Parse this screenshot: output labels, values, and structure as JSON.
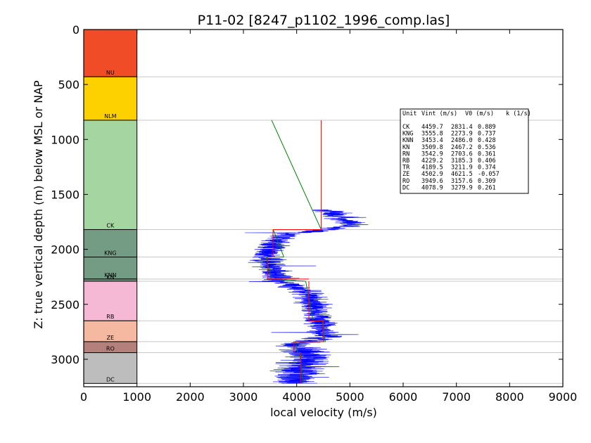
{
  "chart_data": {
    "type": "line",
    "title": "P11-02 [8247_p1102_1996_comp.las]",
    "xlabel": "local velocity (m/s)",
    "ylabel": "Z: true vertical depth (m) below MSL or NAP",
    "xlim": [
      0,
      9000
    ],
    "ylim": [
      3250,
      0
    ],
    "xticks": [
      "0",
      "1000",
      "2000",
      "3000",
      "4000",
      "5000",
      "6000",
      "7000",
      "8000",
      "9000"
    ],
    "yticks": [
      "0",
      "500",
      "1000",
      "1500",
      "2000",
      "2500",
      "3000"
    ],
    "grid": false,
    "units": [
      {
        "name": "NU",
        "top": 0,
        "base": 430,
        "color": "#f04c28"
      },
      {
        "name": "NLM",
        "top": 430,
        "base": 825,
        "color": "#fdd000"
      },
      {
        "name": "CK",
        "top": 825,
        "base": 1820,
        "color": "#a5d5a0"
      },
      {
        "name": "KNG",
        "top": 1820,
        "base": 2070,
        "color": "#749b84"
      },
      {
        "name": "KNN",
        "top": 2070,
        "base": 2270,
        "color": "#749b84"
      },
      {
        "name": "KN",
        "top": 2270,
        "base": 2290,
        "color": "#749b84"
      },
      {
        "name": "RB",
        "top": 2290,
        "base": 2650,
        "color": "#f5b9d5"
      },
      {
        "name": "ZE",
        "top": 2650,
        "base": 2840,
        "color": "#f5b8a0"
      },
      {
        "name": "RO",
        "top": 2840,
        "base": 2940,
        "color": "#b4807c"
      },
      {
        "name": "DC",
        "top": 2940,
        "base": 3220,
        "color": "#bdbdbd"
      }
    ],
    "legend": {
      "position": "top-right",
      "header": [
        "Unit",
        "Vint (m/s)",
        "V0 (m/s)",
        "k (1/s)"
      ],
      "rows": [
        [
          "CK",
          "4459.7",
          "2831.4",
          "0.889"
        ],
        [
          "KNG",
          "3555.8",
          "2273.9",
          "0.737"
        ],
        [
          "KNN",
          "3453.4",
          "2486.0",
          "0.428"
        ],
        [
          "KN",
          "3509.8",
          "2467.2",
          "0.536"
        ],
        [
          "RN",
          "3542.9",
          "2703.6",
          "0.361"
        ],
        [
          "RB",
          "4229.2",
          "3185.3",
          "0.406"
        ],
        [
          "TR",
          "4189.5",
          "3211.9",
          "0.374"
        ],
        [
          "ZE",
          "4502.9",
          "4621.5",
          "-0.057"
        ],
        [
          "RO",
          "3949.6",
          "3157.6",
          "0.309"
        ],
        [
          "DC",
          "4078.9",
          "3279.9",
          "0.261"
        ]
      ]
    },
    "series": [
      {
        "kind": "interval_velocity",
        "color": "#ff0000",
        "segments": [
          {
            "v": 4459.7,
            "top": 825,
            "base": 1820
          },
          {
            "v": 3555.8,
            "top": 1820,
            "base": 2070
          },
          {
            "v": 3453.4,
            "top": 2070,
            "base": 2270
          },
          {
            "v": 4229.2,
            "top": 2290,
            "base": 2650
          },
          {
            "v": 4502.9,
            "top": 2650,
            "base": 2840
          },
          {
            "v": 3949.6,
            "top": 2840,
            "base": 2940
          },
          {
            "v": 4078.9,
            "top": 2940,
            "base": 3220
          }
        ]
      },
      {
        "kind": "linear_trend",
        "color": "#008000",
        "segments": [
          {
            "v_top": 3530,
            "v_base": 4460,
            "top": 825,
            "base": 1820
          },
          {
            "v_top": 3560,
            "v_base": 3760,
            "top": 1820,
            "base": 2070
          },
          {
            "v_top": 3430,
            "v_base": 3520,
            "top": 2070,
            "base": 2270
          },
          {
            "v_top": 4170,
            "v_base": 4310,
            "top": 2290,
            "base": 2650
          },
          {
            "v_top": 4480,
            "v_base": 4540,
            "top": 2650,
            "base": 2840
          },
          {
            "v_top": 3980,
            "v_base": 4020,
            "top": 2840,
            "base": 2940
          },
          {
            "v_top": 4060,
            "v_base": 4120,
            "top": 2940,
            "base": 3220
          }
        ]
      },
      {
        "kind": "sonic_log",
        "color": "#0000ff",
        "trend": [
          {
            "z": 1640,
            "v": 4600
          },
          {
            "z": 1700,
            "v": 4800
          },
          {
            "z": 1780,
            "v": 5100
          },
          {
            "z": 1820,
            "v": 4600
          },
          {
            "z": 1860,
            "v": 3800
          },
          {
            "z": 1950,
            "v": 3600
          },
          {
            "z": 2060,
            "v": 3400
          },
          {
            "z": 2150,
            "v": 3550
          },
          {
            "z": 2280,
            "v": 3650
          },
          {
            "z": 2400,
            "v": 4250
          },
          {
            "z": 2550,
            "v": 4350
          },
          {
            "z": 2700,
            "v": 4450
          },
          {
            "z": 2800,
            "v": 4550
          },
          {
            "z": 2870,
            "v": 3900
          },
          {
            "z": 2950,
            "v": 4200
          },
          {
            "z": 3050,
            "v": 4100
          },
          {
            "z": 3150,
            "v": 4050
          },
          {
            "z": 3220,
            "v": 4000
          }
        ]
      }
    ]
  }
}
